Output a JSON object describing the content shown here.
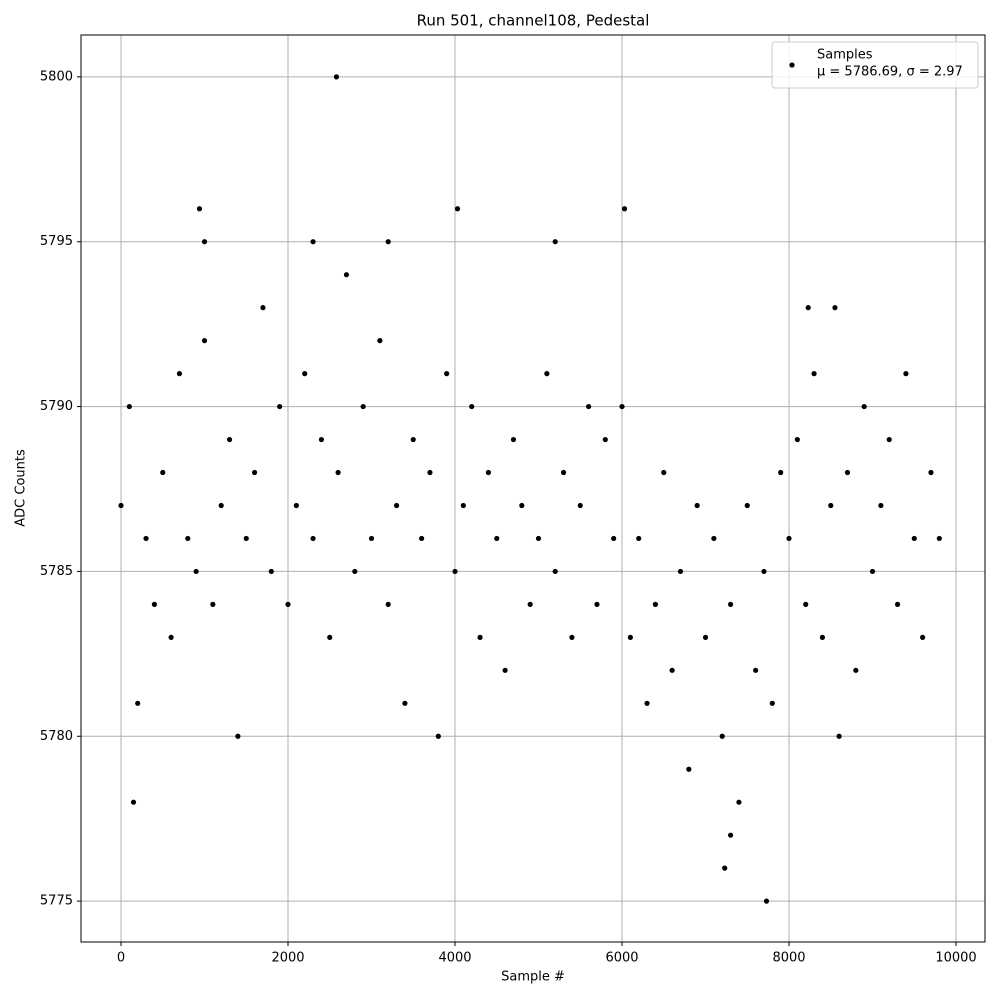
{
  "chart_data": {
    "type": "scatter",
    "title": "Run 501, channel108, Pedestal",
    "x_label": "Sample #",
    "y_label": "ADC Counts",
    "series": [
      {
        "name": "Samples",
        "color": "#000000",
        "x": [
          0,
          100,
          200,
          300,
          400,
          500,
          600,
          700,
          800,
          900,
          1000,
          1100,
          1200,
          1300,
          1400,
          1500,
          1600,
          1700,
          1800,
          1900,
          2000,
          2100,
          2200,
          2300,
          2400,
          2500,
          2600,
          2700,
          2800,
          2900,
          3000,
          3100,
          3200,
          3300,
          3400,
          3500,
          3600,
          3700,
          3800,
          3900,
          4000,
          4100,
          4200,
          4300,
          4400,
          4500,
          4600,
          4700,
          4800,
          4900,
          5000,
          5100,
          5200,
          5300,
          5400,
          5500,
          5600,
          5700,
          5800,
          5900,
          6000,
          6100,
          6200,
          6300,
          6400,
          6500,
          6600,
          6700,
          6800,
          6900,
          7000,
          7100,
          7200,
          7300,
          7400,
          7500,
          7600,
          7700,
          7800,
          7900,
          8000,
          8100,
          8200,
          8300,
          8400,
          8500,
          8600,
          8700,
          8800,
          8900,
          9000,
          9100,
          9200,
          9300,
          9400,
          9500,
          9600,
          9700,
          9800,
          150,
          940,
          1000,
          2580,
          4030,
          6030,
          7230,
          7730,
          7300,
          8230,
          8550,
          5200,
          2300,
          3200
        ],
        "values": [
          5787,
          5790,
          5781,
          5786,
          5784,
          5788,
          5783,
          5791,
          5786,
          5785,
          5792,
          5784,
          5787,
          5789,
          5780,
          5786,
          5788,
          5793,
          5785,
          5790,
          5784,
          5787,
          5791,
          5786,
          5789,
          5783,
          5788,
          5794,
          5785,
          5790,
          5786,
          5792,
          5784,
          5787,
          5781,
          5789,
          5786,
          5788,
          5780,
          5791,
          5785,
          5787,
          5790,
          5783,
          5788,
          5786,
          5782,
          5789,
          5787,
          5784,
          5786,
          5791,
          5785,
          5788,
          5783,
          5787,
          5790,
          5784,
          5789,
          5786,
          5790,
          5783,
          5786,
          5781,
          5784,
          5788,
          5782,
          5785,
          5779,
          5787,
          5783,
          5786,
          5780,
          5784,
          5778,
          5787,
          5782,
          5785,
          5781,
          5788,
          5786,
          5789,
          5784,
          5791,
          5783,
          5787,
          5780,
          5788,
          5782,
          5790,
          5785,
          5787,
          5789,
          5784,
          5791,
          5786,
          5783,
          5788,
          5786,
          5778,
          5796,
          5795,
          5800,
          5796,
          5796,
          5776,
          5775,
          5777,
          5793,
          5793,
          5795,
          5795,
          5795
        ]
      }
    ],
    "legend_note": "μ = 5786.69, σ = 2.97",
    "legend": "upper right",
    "xlim": [
      -479,
      10347
    ],
    "ylim": [
      5773.76,
      5801.27
    ],
    "xticks": [
      0,
      2000,
      4000,
      6000,
      8000,
      10000
    ],
    "yticks": [
      5775,
      5780,
      5785,
      5790,
      5795,
      5800
    ],
    "grid": true
  }
}
